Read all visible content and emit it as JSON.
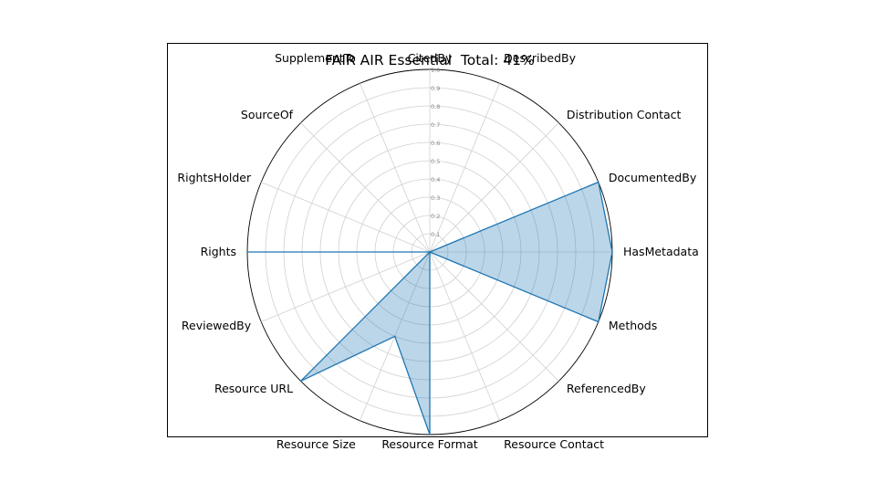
{
  "chart_data": {
    "type": "radar",
    "title": "FAIR AIR Essential  Total: 41%",
    "categories": [
      "CitedBy",
      "DescribedBy",
      "Distribution Contact",
      "DocumentedBy",
      "HasMetadata",
      "Methods",
      "ReferencedBy",
      "Resource Contact",
      "Resource Format",
      "Resource Size",
      "Resource URL",
      "ReviewedBy",
      "Rights",
      "RightsHolder",
      "SourceOf",
      "SupplementTo"
    ],
    "values": [
      0,
      0,
      0,
      1,
      1,
      1,
      0,
      0,
      1,
      0.5,
      1,
      0,
      1,
      0,
      0,
      0
    ],
    "rlim": [
      0,
      1.0
    ],
    "radial_ticks": [
      "0.1",
      "0.2",
      "0.3",
      "0.4",
      "0.5",
      "0.6",
      "0.7",
      "0.8",
      "0.9",
      "1.0"
    ],
    "grid": true,
    "line_color": "#1f77b4",
    "fill_color": "#1f77b4",
    "fill_alpha": 0.3
  }
}
